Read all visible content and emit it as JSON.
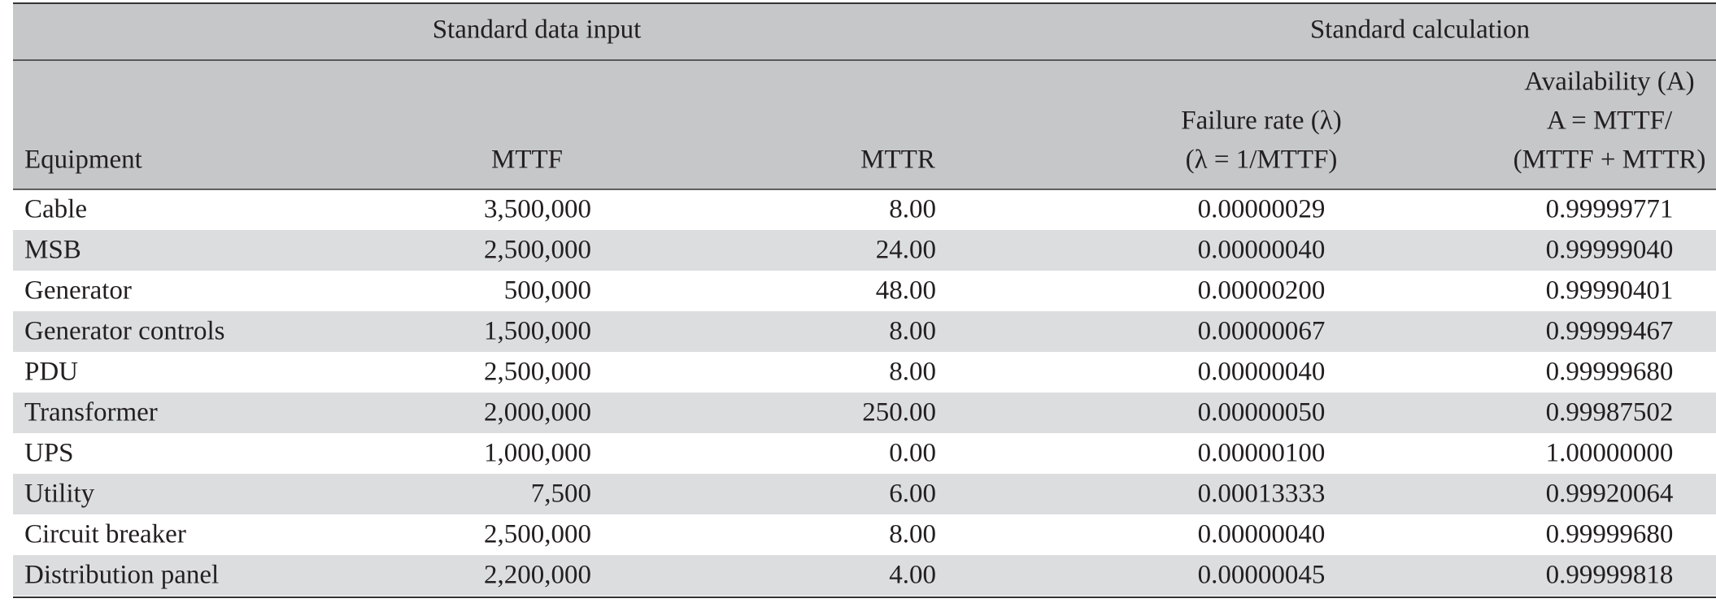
{
  "table": {
    "groups": [
      "Standard data input",
      "Standard calculation"
    ],
    "columns": [
      [
        "Equipment"
      ],
      [
        "MTTF"
      ],
      [
        "MTTR"
      ],
      [
        "Failure rate (λ)",
        "(λ = 1/MTTF)"
      ],
      [
        "Availability (A)",
        "A = MTTF/",
        "(MTTF + MTTR)"
      ]
    ],
    "rows": [
      [
        "Cable",
        "3,500,000",
        "8.00",
        "0.00000029",
        "0.99999771"
      ],
      [
        "MSB",
        "2,500,000",
        "24.00",
        "0.00000040",
        "0.99999040"
      ],
      [
        "Generator",
        "500,000",
        "48.00",
        "0.00000200",
        "0.99990401"
      ],
      [
        "Generator controls",
        "1,500,000",
        "8.00",
        "0.00000067",
        "0.99999467"
      ],
      [
        "PDU",
        "2,500,000",
        "8.00",
        "0.00000040",
        "0.99999680"
      ],
      [
        "Transformer",
        "2,000,000",
        "250.00",
        "0.00000050",
        "0.99987502"
      ],
      [
        "UPS",
        "1,000,000",
        "0.00",
        "0.00000100",
        "1.00000000"
      ],
      [
        "Utility",
        "7,500",
        "6.00",
        "0.00013333",
        "0.99920064"
      ],
      [
        "Circuit breaker",
        "2,500,000",
        "8.00",
        "0.00000040",
        "0.99999680"
      ],
      [
        "Distribution panel",
        "2,200,000",
        "4.00",
        "0.00000045",
        "0.99999818"
      ]
    ]
  }
}
